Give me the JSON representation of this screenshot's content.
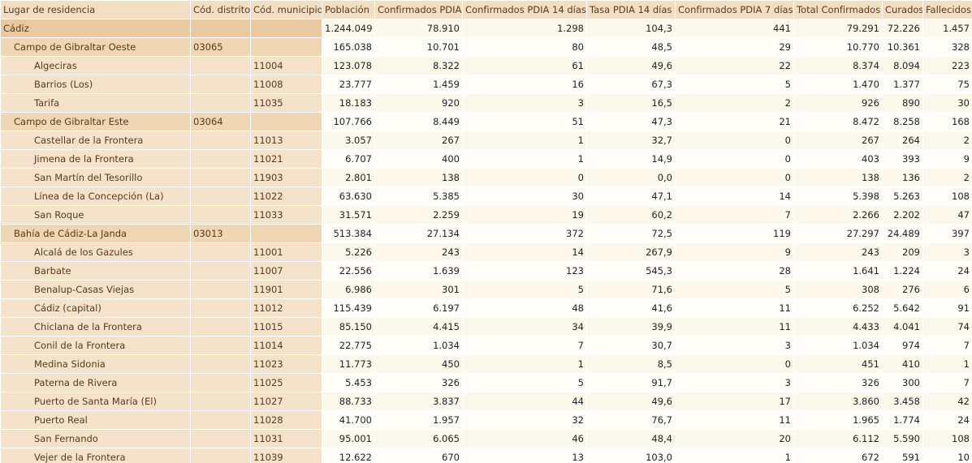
{
  "table": {
    "columns": [
      "Lugar de residencia",
      "Cód. distrito",
      "Cód. municipio",
      "Población",
      "Confirmados PDIA",
      "Confirmados PDIA 14 días",
      "Tasa PDIA 14 días",
      "Confirmados PDIA 7 días",
      "Total Confirmados",
      "Curados",
      "Fallecidos"
    ],
    "rows": [
      [
        "Cádiz",
        null,
        null,
        "1.244.049",
        "78.910",
        "1.298",
        "104,3",
        "441",
        "79.291",
        "72.226",
        "1.457"
      ],
      [
        "Campo de Gibraltar Oeste",
        "03065",
        null,
        "165.038",
        "10.701",
        "80",
        "48,5",
        "29",
        "10.770",
        "10.361",
        "328"
      ],
      [
        "Algeciras",
        null,
        "11004",
        "123.078",
        "8.322",
        "61",
        "49,6",
        "22",
        "8.374",
        "8.094",
        "223"
      ],
      [
        "Barrios (Los)",
        null,
        "11008",
        "23.777",
        "1.459",
        "16",
        "67,3",
        "5",
        "1.470",
        "1.377",
        "75"
      ],
      [
        "Tarifa",
        null,
        "11035",
        "18.183",
        "920",
        "3",
        "16,5",
        "2",
        "926",
        "890",
        "30"
      ],
      [
        "Campo de Gibraltar Este",
        "03064",
        null,
        "107.766",
        "8.449",
        "51",
        "47,3",
        "21",
        "8.472",
        "8.258",
        "168"
      ],
      [
        "Castellar de la Frontera",
        null,
        "11013",
        "3.057",
        "267",
        "1",
        "32,7",
        "0",
        "267",
        "264",
        "2"
      ],
      [
        "Jimena de la Frontera",
        null,
        "11021",
        "6.707",
        "400",
        "1",
        "14,9",
        "0",
        "403",
        "393",
        "9"
      ],
      [
        "San Martín del Tesorillo",
        null,
        "11903",
        "2.801",
        "138",
        "0",
        "0,0",
        "0",
        "138",
        "136",
        "2"
      ],
      [
        "Línea de la Concepción (La)",
        null,
        "11022",
        "63.630",
        "5.385",
        "30",
        "47,1",
        "14",
        "5.398",
        "5.263",
        "108"
      ],
      [
        "San Roque",
        null,
        "11033",
        "31.571",
        "2.259",
        "19",
        "60,2",
        "7",
        "2.266",
        "2.202",
        "47"
      ],
      [
        "Bahía de Cádiz-La Janda",
        "03013",
        null,
        "513.384",
        "27.134",
        "372",
        "72,5",
        "119",
        "27.297",
        "24.489",
        "397"
      ],
      [
        "Alcalá de los Gazules",
        null,
        "11001",
        "5.226",
        "243",
        "14",
        "267,9",
        "9",
        "243",
        "209",
        "3"
      ],
      [
        "Barbate",
        null,
        "11007",
        "22.556",
        "1.639",
        "123",
        "545,3",
        "28",
        "1.641",
        "1.224",
        "24"
      ],
      [
        "Benalup-Casas Viejas",
        null,
        "11901",
        "6.986",
        "301",
        "5",
        "71,6",
        "5",
        "308",
        "276",
        "6"
      ],
      [
        "Cádiz (capital)",
        null,
        "11012",
        "115.439",
        "6.197",
        "48",
        "41,6",
        "11",
        "6.252",
        "5.642",
        "91"
      ],
      [
        "Chiclana de la Frontera",
        null,
        "11015",
        "85.150",
        "4.415",
        "34",
        "39,9",
        "11",
        "4.433",
        "4.041",
        "74"
      ],
      [
        "Conil de la Frontera",
        null,
        "11014",
        "22.775",
        "1.034",
        "7",
        "30,7",
        "3",
        "1.034",
        "974",
        "7"
      ],
      [
        "Medina Sidonia",
        null,
        "11023",
        "11.773",
        "450",
        "1",
        "8,5",
        "0",
        "451",
        "410",
        "1"
      ],
      [
        "Paterna de Rivera",
        null,
        "11025",
        "5.453",
        "326",
        "5",
        "91,7",
        "3",
        "326",
        "300",
        "7"
      ],
      [
        "Puerto de Santa María (El)",
        null,
        "11027",
        "88.733",
        "3.837",
        "44",
        "49,6",
        "17",
        "3.860",
        "3.458",
        "42"
      ],
      [
        "Puerto Real",
        null,
        "11028",
        "41.700",
        "1.957",
        "32",
        "76,7",
        "11",
        "1.965",
        "1.774",
        "24"
      ],
      [
        "San Fernando",
        null,
        "11031",
        "95.001",
        "6.065",
        "46",
        "48,4",
        "20",
        "6.112",
        "5.590",
        "108"
      ],
      [
        "Vejer de la Frontera",
        null,
        "11039",
        "12.622",
        "670",
        "13",
        "103,0",
        "1",
        "672",
        "591",
        "10"
      ]
    ]
  }
}
